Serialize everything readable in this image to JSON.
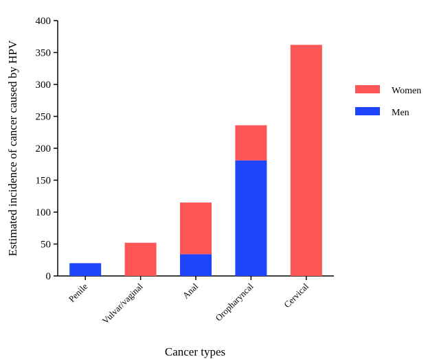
{
  "chart_data": {
    "type": "bar",
    "stacked": true,
    "title": "",
    "xlabel": "Cancer types",
    "ylabel": "Estimated incidence of cancer caused by HPV",
    "ylim": [
      0,
      400
    ],
    "yticks": [
      0,
      50,
      100,
      150,
      200,
      250,
      300,
      350,
      400
    ],
    "categories": [
      "Penile",
      "Vulvar/vaginal",
      "Anal",
      "Oropharyncal",
      "Cervical"
    ],
    "series": [
      {
        "name": "Men",
        "color": "#1f45fc",
        "values": [
          20,
          0,
          34,
          181,
          0
        ]
      },
      {
        "name": "Women",
        "color": "#fd5656",
        "values": [
          0,
          52,
          81,
          55,
          362
        ]
      }
    ],
    "legend": {
      "position": "right",
      "entries": [
        {
          "label": "Women",
          "color": "#fd5656"
        },
        {
          "label": "Men",
          "color": "#1f45fc"
        }
      ]
    },
    "grid": false
  }
}
